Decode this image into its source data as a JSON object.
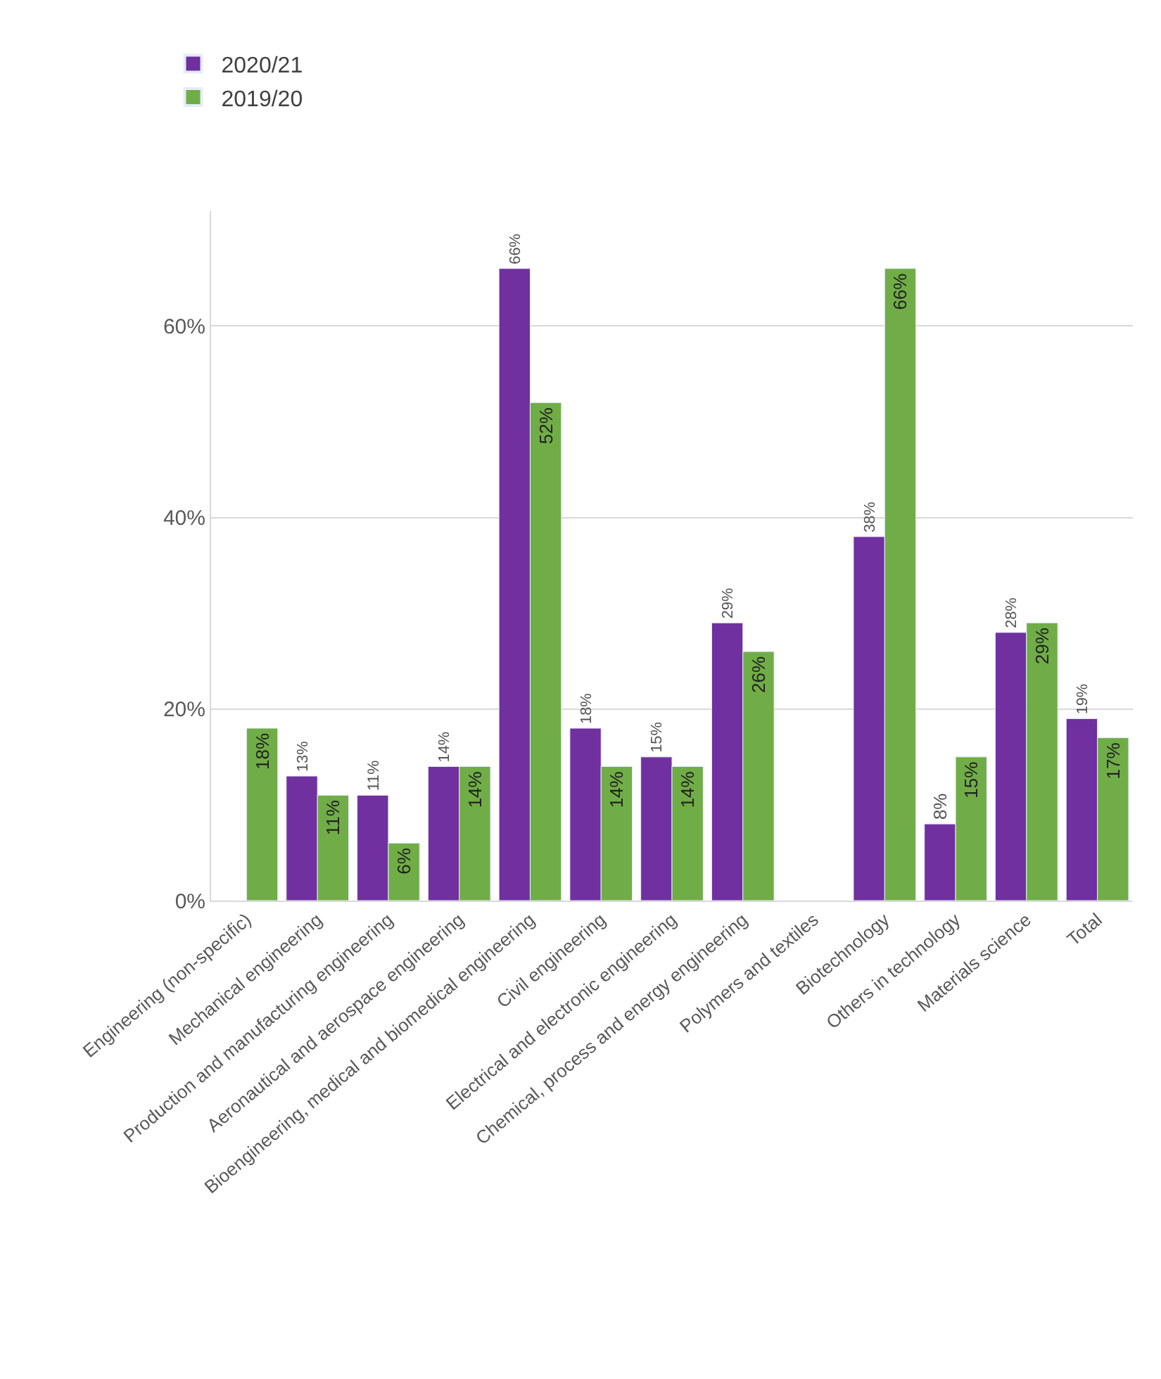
{
  "chart_data": {
    "type": "bar",
    "categories": [
      "Engineering (non-specific)",
      "Mechanical engineering",
      "Production and manufacturing engineering",
      "Aeronautical and aerospace engineering",
      "Bioengineering, medical and biomedical engineering",
      "Civil engineering",
      "Electrical and electronic engineering",
      "Chemical, process and energy engineering",
      "Polymers and textiles",
      "Biotechnology",
      "Others in technology",
      "Materials science",
      "Total"
    ],
    "series": [
      {
        "name": "2020/21",
        "color": "#7030a0",
        "values": [
          null,
          13,
          11,
          14,
          66,
          18,
          15,
          29,
          null,
          38,
          8,
          28,
          19
        ],
        "value_labels": [
          null,
          "13%",
          "11%",
          "14%",
          "66%",
          "18%",
          "15%",
          "29%",
          null,
          "38%",
          "8%",
          "28%",
          "19%"
        ]
      },
      {
        "name": "2019/20",
        "color": "#70ad47",
        "values": [
          18,
          11,
          6,
          14,
          52,
          14,
          14,
          26,
          null,
          66,
          15,
          29,
          17
        ],
        "value_labels": [
          "18%",
          "11%",
          "6%",
          "14%",
          "52%",
          "14%",
          "14%",
          "26%",
          null,
          "66%",
          "15%",
          "29%",
          "17%"
        ]
      }
    ],
    "ylim": [
      0,
      72
    ],
    "yticks": [
      {
        "value": 0,
        "label": "0%"
      },
      {
        "value": 20,
        "label": "20%"
      },
      {
        "value": 40,
        "label": "40%"
      },
      {
        "value": 60,
        "label": "60%"
      }
    ],
    "grid": "y",
    "legend": "top left"
  }
}
